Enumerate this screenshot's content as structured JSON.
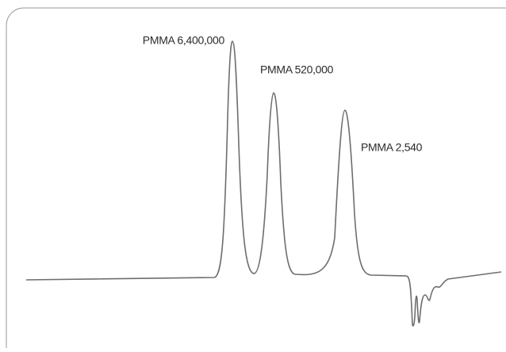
{
  "annotations": [
    "PMMA 6,400,000",
    "PMMA 520,000",
    "PMMA 2,540"
  ]
}
